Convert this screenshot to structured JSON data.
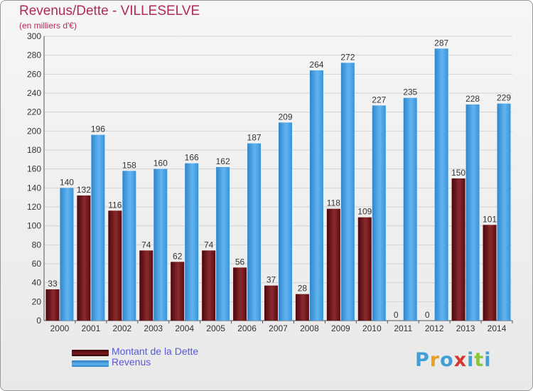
{
  "header": {
    "title": "Revenus/Dette - VILLESELVE",
    "subtitle": "(en milliers d'€)"
  },
  "chart_data": {
    "type": "bar",
    "categories": [
      "2000",
      "2001",
      "2002",
      "2003",
      "2004",
      "2005",
      "2006",
      "2007",
      "2008",
      "2009",
      "2010",
      "2011",
      "2012",
      "2013",
      "2014"
    ],
    "series": [
      {
        "name": "Montant de la Dette",
        "color": "#7a1a1e",
        "values": [
          33,
          132,
          116,
          74,
          62,
          74,
          56,
          37,
          28,
          118,
          109,
          0,
          0,
          150,
          101
        ]
      },
      {
        "name": "Revenus",
        "color": "#4aa3e6",
        "values": [
          140,
          196,
          158,
          160,
          166,
          162,
          187,
          209,
          264,
          272,
          227,
          235,
          287,
          228,
          229
        ]
      }
    ],
    "title": "Revenus/Dette - VILLESELVE",
    "subtitle": "(en milliers d'€)",
    "xlabel": "",
    "ylabel": "",
    "ylim": [
      0,
      300
    ],
    "yticks": [
      0,
      20,
      40,
      60,
      80,
      100,
      120,
      140,
      160,
      180,
      200,
      220,
      240,
      260,
      280,
      300
    ],
    "grid": true,
    "legend": "bottom-left"
  },
  "legend": {
    "items": [
      {
        "label": "Montant de la Dette",
        "color": "#7a1a1e"
      },
      {
        "label": "Revenus",
        "color": "#4aa3e6"
      }
    ]
  },
  "logo": {
    "text": "Proxiti",
    "colors": [
      "#3fa0d8",
      "#e8a020",
      "#3fa0d8",
      "#d03a30",
      "#3fa0d8",
      "#8cc63f",
      "#3fa0d8"
    ]
  }
}
